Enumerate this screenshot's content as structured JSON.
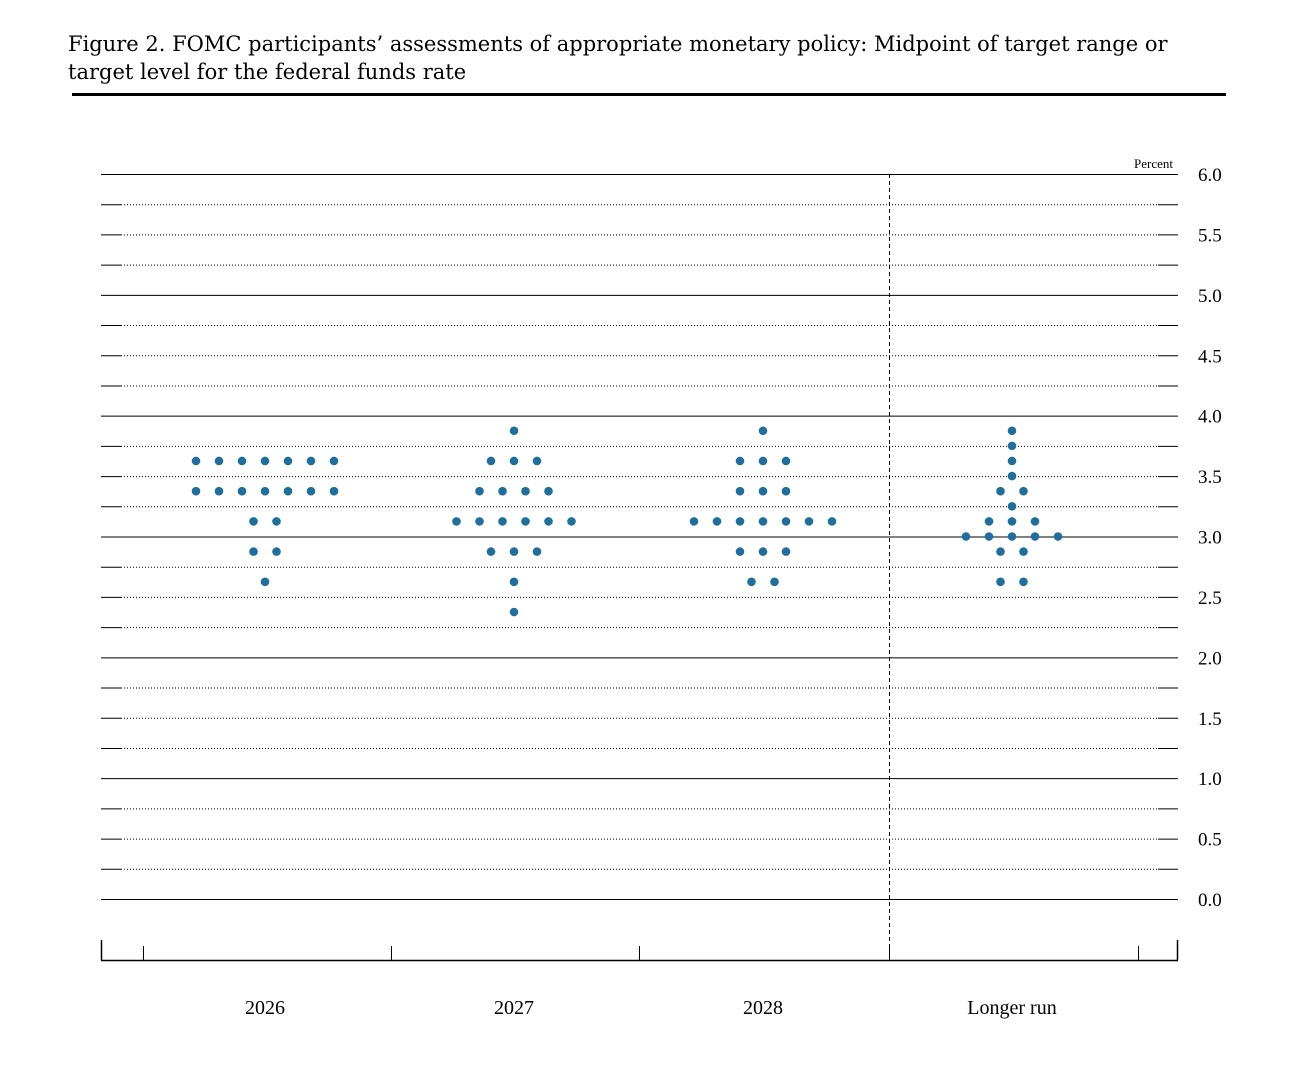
{
  "figure": {
    "title": "Figure 2. FOMC participants’ assessments of appropriate monetary policy: Midpoint of target range or target level for the federal funds rate"
  },
  "chart_data": {
    "type": "scatter",
    "title": "Figure 2. FOMC participants’ assessments of appropriate monetary policy: Midpoint of target range or target level for the federal funds rate",
    "unit_label": "Percent",
    "categories": [
      "2026",
      "2027",
      "2028",
      "Longer run"
    ],
    "ylim": [
      0.0,
      6.0
    ],
    "yticks": [
      "0.0",
      "0.5",
      "1.0",
      "1.5",
      "2.0",
      "2.5",
      "3.0",
      "3.5",
      "4.0",
      "4.5",
      "5.0",
      "5.5",
      "6.0"
    ],
    "grid": true,
    "dot_color": "#1f6e9c",
    "dots": [
      {
        "category": "2026",
        "rows": [
          {
            "rate": 3.625,
            "count": 7
          },
          {
            "rate": 3.375,
            "count": 7
          },
          {
            "rate": 3.125,
            "count": 2
          },
          {
            "rate": 2.875,
            "count": 2
          },
          {
            "rate": 2.625,
            "count": 1
          }
        ]
      },
      {
        "category": "2027",
        "rows": [
          {
            "rate": 3.875,
            "count": 1
          },
          {
            "rate": 3.625,
            "count": 3
          },
          {
            "rate": 3.375,
            "count": 4
          },
          {
            "rate": 3.125,
            "count": 6
          },
          {
            "rate": 2.875,
            "count": 3
          },
          {
            "rate": 2.625,
            "count": 1
          },
          {
            "rate": 2.375,
            "count": 1
          }
        ]
      },
      {
        "category": "2028",
        "rows": [
          {
            "rate": 3.875,
            "count": 1
          },
          {
            "rate": 3.625,
            "count": 3
          },
          {
            "rate": 3.375,
            "count": 3
          },
          {
            "rate": 3.125,
            "count": 7
          },
          {
            "rate": 2.875,
            "count": 3
          },
          {
            "rate": 2.625,
            "count": 2
          }
        ]
      },
      {
        "category": "Longer run",
        "rows": [
          {
            "rate": 3.875,
            "count": 1
          },
          {
            "rate": 3.75,
            "count": 1
          },
          {
            "rate": 3.625,
            "count": 1
          },
          {
            "rate": 3.5,
            "count": 1
          },
          {
            "rate": 3.375,
            "count": 2
          },
          {
            "rate": 3.25,
            "count": 1
          },
          {
            "rate": 3.125,
            "count": 3
          },
          {
            "rate": 3.0,
            "count": 5
          },
          {
            "rate": 2.875,
            "count": 2
          },
          {
            "rate": 2.625,
            "count": 2
          }
        ]
      }
    ]
  }
}
